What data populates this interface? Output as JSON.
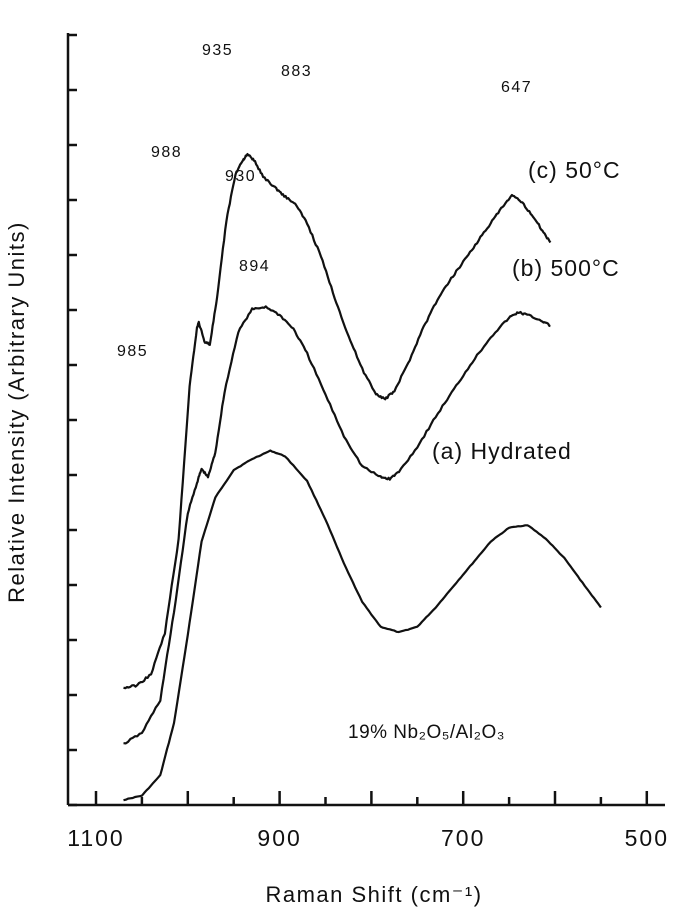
{
  "chart_data": {
    "type": "line",
    "xlabel": "Raman Shift (cm⁻¹)",
    "ylabel": "Relative Intensity (Arbitrary Units)",
    "x_ticks": [
      "1100",
      "900",
      "700",
      "500"
    ],
    "xlim": [
      1100,
      500
    ],
    "x_reversed": true,
    "y_tick_labels": false,
    "grid": false,
    "annotation": "19% Nb₂O₅/Al₂O₃",
    "series": [
      {
        "name": "(a) Hydrated",
        "stacked_offset": 0,
        "points": [
          [
            1070,
            0.0
          ],
          [
            1050,
            0.08
          ],
          [
            1030,
            0.45
          ],
          [
            1015,
            1.4
          ],
          [
            1000,
            3.0
          ],
          [
            985,
            4.7
          ],
          [
            970,
            5.5
          ],
          [
            950,
            6.0
          ],
          [
            930,
            6.2
          ],
          [
            910,
            6.35
          ],
          [
            894,
            6.25
          ],
          [
            870,
            5.8
          ],
          [
            850,
            5.1
          ],
          [
            830,
            4.3
          ],
          [
            810,
            3.6
          ],
          [
            790,
            3.15
          ],
          [
            770,
            3.05
          ],
          [
            750,
            3.15
          ],
          [
            730,
            3.5
          ],
          [
            710,
            3.9
          ],
          [
            690,
            4.3
          ],
          [
            670,
            4.7
          ],
          [
            650,
            4.95
          ],
          [
            630,
            5.0
          ],
          [
            610,
            4.75
          ],
          [
            590,
            4.4
          ],
          [
            570,
            3.95
          ],
          [
            550,
            3.5
          ]
        ]
      },
      {
        "name": "(b) 500°C",
        "stacked_offset": 1,
        "points": [
          [
            1070,
            0.0
          ],
          [
            1050,
            0.2
          ],
          [
            1030,
            0.8
          ],
          [
            1015,
            2.4
          ],
          [
            1000,
            4.2
          ],
          [
            990,
            4.75
          ],
          [
            985,
            5.0
          ],
          [
            978,
            4.85
          ],
          [
            970,
            5.3
          ],
          [
            960,
            6.4
          ],
          [
            945,
            7.5
          ],
          [
            930,
            7.9
          ],
          [
            915,
            7.95
          ],
          [
            900,
            7.8
          ],
          [
            885,
            7.55
          ],
          [
            870,
            7.1
          ],
          [
            850,
            6.35
          ],
          [
            830,
            5.6
          ],
          [
            810,
            5.05
          ],
          [
            790,
            4.85
          ],
          [
            780,
            4.82
          ],
          [
            770,
            4.95
          ],
          [
            750,
            5.4
          ],
          [
            730,
            5.95
          ],
          [
            710,
            6.45
          ],
          [
            690,
            6.95
          ],
          [
            670,
            7.4
          ],
          [
            650,
            7.75
          ],
          [
            640,
            7.85
          ],
          [
            630,
            7.8
          ],
          [
            615,
            7.7
          ],
          [
            605,
            7.6
          ]
        ]
      },
      {
        "name": "(c) 50°C",
        "stacked_offset": 2,
        "points": [
          [
            1070,
            0.0
          ],
          [
            1055,
            0.05
          ],
          [
            1040,
            0.25
          ],
          [
            1025,
            1.0
          ],
          [
            1010,
            2.7
          ],
          [
            998,
            5.5
          ],
          [
            990,
            6.55
          ],
          [
            988,
            6.65
          ],
          [
            982,
            6.3
          ],
          [
            976,
            6.25
          ],
          [
            968,
            7.1
          ],
          [
            958,
            8.5
          ],
          [
            948,
            9.35
          ],
          [
            940,
            9.6
          ],
          [
            935,
            9.7
          ],
          [
            928,
            9.6
          ],
          [
            918,
            9.3
          ],
          [
            905,
            9.1
          ],
          [
            895,
            8.95
          ],
          [
            883,
            8.8
          ],
          [
            870,
            8.45
          ],
          [
            855,
            7.85
          ],
          [
            840,
            7.1
          ],
          [
            825,
            6.4
          ],
          [
            810,
            5.8
          ],
          [
            795,
            5.35
          ],
          [
            785,
            5.25
          ],
          [
            775,
            5.4
          ],
          [
            760,
            5.9
          ],
          [
            745,
            6.5
          ],
          [
            730,
            7.0
          ],
          [
            715,
            7.4
          ],
          [
            700,
            7.75
          ],
          [
            685,
            8.1
          ],
          [
            670,
            8.45
          ],
          [
            657,
            8.75
          ],
          [
            647,
            8.95
          ],
          [
            637,
            8.85
          ],
          [
            625,
            8.6
          ],
          [
            615,
            8.35
          ],
          [
            605,
            8.1
          ]
        ]
      }
    ],
    "peak_labels": [
      "935",
      "883",
      "647",
      "988",
      "930",
      "894",
      "985"
    ]
  }
}
